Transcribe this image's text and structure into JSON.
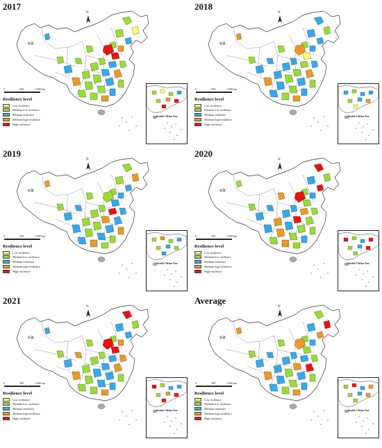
{
  "legend": {
    "title": "Resilience level",
    "items": [
      {
        "label": "Low resilience",
        "color": "#ffff66"
      },
      {
        "label": "Medium low resilience",
        "color": "#99dd33"
      },
      {
        "label": "Medium resilience",
        "color": "#33aaee"
      },
      {
        "label": "Medium high resilience",
        "color": "#ee9922"
      },
      {
        "label": "High resilience",
        "color": "#ee1111"
      }
    ]
  },
  "inset_label": "South China Sea",
  "scale": {
    "zero": "0",
    "mid": "500",
    "end": "1,000 km"
  },
  "north_label": "N",
  "region_label": "新疆",
  "panels": [
    {
      "year": "2017",
      "fills": [
        1,
        0,
        1,
        2,
        1,
        3,
        4,
        4,
        1,
        2,
        1,
        1,
        2,
        3,
        1,
        1,
        2,
        1,
        3,
        1,
        1,
        2,
        1,
        1,
        3,
        2,
        1,
        1,
        2,
        1
      ]
    },
    {
      "year": "2018",
      "fills": [
        2,
        1,
        2,
        2,
        1,
        2,
        3,
        0,
        2,
        1,
        2,
        2,
        1,
        3,
        2,
        1,
        2,
        1,
        3,
        2,
        1,
        2,
        2,
        1,
        3,
        2,
        1,
        2,
        3,
        1
      ]
    },
    {
      "year": "2019",
      "fills": [
        1,
        3,
        1,
        2,
        1,
        2,
        1,
        2,
        1,
        4,
        2,
        1,
        3,
        2,
        1,
        1,
        2,
        3,
        2,
        1,
        2,
        1,
        2,
        3,
        1,
        2,
        1,
        2,
        3,
        1
      ]
    },
    {
      "year": "2020",
      "fills": [
        4,
        1,
        2,
        4,
        1,
        2,
        4,
        1,
        2,
        3,
        1,
        2,
        4,
        1,
        3,
        2,
        1,
        1,
        2,
        3,
        1,
        2,
        1,
        3,
        1,
        2,
        1,
        2,
        1,
        3
      ]
    },
    {
      "year": "2021",
      "fills": [
        4,
        1,
        2,
        2,
        1,
        3,
        4,
        4,
        1,
        2,
        3,
        1,
        2,
        3,
        1,
        2,
        2,
        1,
        3,
        1,
        2,
        2,
        1,
        1,
        3,
        2,
        1,
        3,
        2,
        1
      ]
    },
    {
      "year": "Average",
      "fills": [
        1,
        4,
        2,
        3,
        1,
        2,
        3,
        1,
        2,
        2,
        1,
        2,
        3,
        4,
        2,
        1,
        2,
        1,
        3,
        2,
        1,
        2,
        2,
        1,
        3,
        2,
        1,
        2,
        3,
        1
      ]
    }
  ]
}
